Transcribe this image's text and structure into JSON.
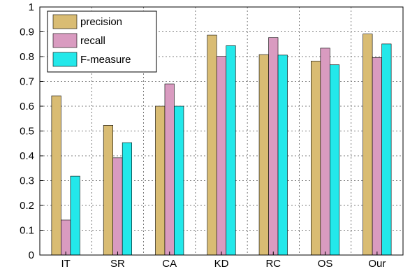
{
  "chart_data": {
    "type": "bar",
    "categories": [
      "IT",
      "SR",
      "CA",
      "KD",
      "RC",
      "OS",
      "Our"
    ],
    "series": [
      {
        "name": "precision",
        "color": "#D9BC73",
        "values": [
          0.642,
          0.523,
          0.6,
          0.887,
          0.808,
          0.782,
          0.891
        ]
      },
      {
        "name": "recall",
        "color": "#D99BC0",
        "values": [
          0.141,
          0.392,
          0.69,
          0.801,
          0.877,
          0.834,
          0.796
        ]
      },
      {
        "name": "F-measure",
        "color": "#23E8EA",
        "values": [
          0.318,
          0.453,
          0.6,
          0.844,
          0.806,
          0.767,
          0.851
        ]
      }
    ],
    "ylim": [
      0,
      1
    ],
    "yticks": [
      "0",
      "0.1",
      "0.2",
      "0.3",
      "0.4",
      "0.5",
      "0.6",
      "0.7",
      "0.8",
      "0.9",
      "1"
    ],
    "grid": true,
    "legend_position": "top-left"
  }
}
